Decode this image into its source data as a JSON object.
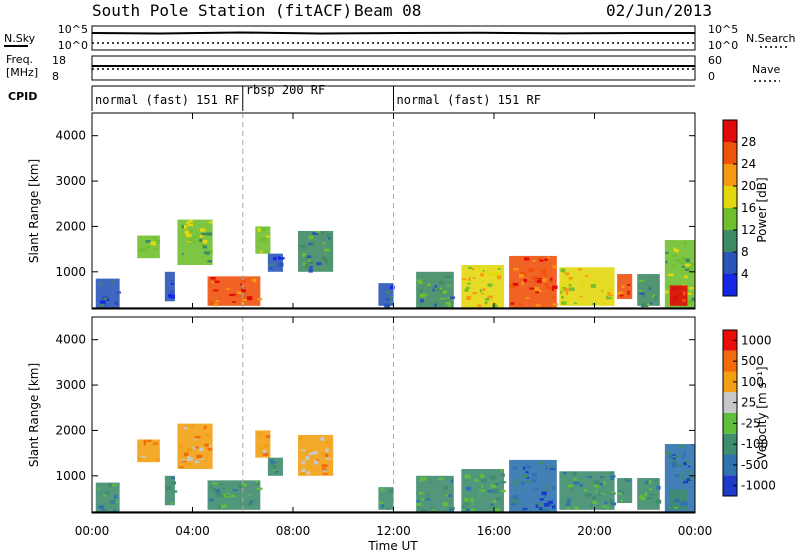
{
  "header": {
    "title": "South Pole Station (fitACF)",
    "beam": "Beam 08",
    "date": "02/Jun/2013"
  },
  "panels": {
    "nsky_label": "N.Sky",
    "nsearch_label": "N.Search",
    "nsky_ticks": [
      "10^5",
      "10^0"
    ],
    "nsearch_ticks": [
      "10^5",
      "10^0"
    ],
    "freq_label_1": "Freq.",
    "freq_label_2": "[MHz]",
    "freq_ticks": [
      "18",
      "8"
    ],
    "nave_label": "Nave",
    "nave_ticks": [
      "60",
      "0"
    ],
    "cpid_label": "CPID",
    "cpid_modes": [
      {
        "label": "normal (fast) 151 RF",
        "start": 0,
        "end": 6
      },
      {
        "label": "rbsp 200 RF",
        "start": 6,
        "end": 12
      },
      {
        "label": "normal (fast) 151 RF",
        "start": 12,
        "end": 24
      }
    ]
  },
  "chart_data": [
    {
      "type": "heatmap",
      "name": "power",
      "ylabel": "Slant Range [km]",
      "xlabel": "Time UT",
      "xlim": [
        0,
        24
      ],
      "ylim": [
        180,
        4500
      ],
      "xticks": [
        "00:00",
        "04:00",
        "08:00",
        "12:00",
        "16:00",
        "20:00",
        "00:00"
      ],
      "yticks": [
        1000,
        2000,
        3000,
        4000
      ],
      "colorbar": {
        "label": "Power [dB]",
        "ticks": [
          "4",
          "8",
          "12",
          "16",
          "20",
          "24",
          "28"
        ],
        "colors": [
          "#1428e6",
          "#2b55b8",
          "#3e8a64",
          "#6fbf2e",
          "#e3d80f",
          "#f59a12",
          "#f0520c",
          "#e00a0a"
        ]
      },
      "patches": [
        {
          "t0": 0.15,
          "t1": 1.1,
          "r0": 200,
          "r1": 850,
          "level": 1
        },
        {
          "t0": 1.8,
          "t1": 2.7,
          "r0": 1300,
          "r1": 1800,
          "level": 3
        },
        {
          "t0": 2.9,
          "t1": 3.3,
          "r0": 350,
          "r1": 1000,
          "level": 1
        },
        {
          "t0": 3.4,
          "t1": 4.8,
          "r0": 1150,
          "r1": 2150,
          "level": 3
        },
        {
          "t0": 4.6,
          "t1": 6.7,
          "r0": 250,
          "r1": 900,
          "level": 6
        },
        {
          "t0": 6.5,
          "t1": 7.1,
          "r0": 1400,
          "r1": 2000,
          "level": 3
        },
        {
          "t0": 7.0,
          "t1": 7.6,
          "r0": 1000,
          "r1": 1400,
          "level": 1
        },
        {
          "t0": 8.2,
          "t1": 9.6,
          "r0": 1000,
          "r1": 1900,
          "level": 2
        },
        {
          "t0": 11.4,
          "t1": 12.0,
          "r0": 250,
          "r1": 750,
          "level": 1
        },
        {
          "t0": 12.9,
          "t1": 14.4,
          "r0": 200,
          "r1": 1000,
          "level": 2
        },
        {
          "t0": 14.7,
          "t1": 16.4,
          "r0": 200,
          "r1": 1150,
          "level": 4
        },
        {
          "t0": 16.6,
          "t1": 18.5,
          "r0": 200,
          "r1": 1350,
          "level": 6
        },
        {
          "t0": 18.6,
          "t1": 20.8,
          "r0": 250,
          "r1": 1100,
          "level": 4
        },
        {
          "t0": 20.9,
          "t1": 21.5,
          "r0": 400,
          "r1": 950,
          "level": 6
        },
        {
          "t0": 21.7,
          "t1": 22.6,
          "r0": 250,
          "r1": 950,
          "level": 2
        },
        {
          "t0": 22.8,
          "t1": 24.0,
          "r0": 200,
          "r1": 1700,
          "level": 3
        },
        {
          "t0": 23.0,
          "t1": 23.7,
          "r0": 250,
          "r1": 700,
          "level": 7
        }
      ]
    },
    {
      "type": "heatmap",
      "name": "velocity",
      "ylabel": "Slant Range [km]",
      "xlabel": "Time UT",
      "xlim": [
        0,
        24
      ],
      "ylim": [
        180,
        4500
      ],
      "xticks": [
        "00:00",
        "04:00",
        "08:00",
        "12:00",
        "16:00",
        "20:00",
        "00:00"
      ],
      "yticks": [
        1000,
        2000,
        3000,
        4000
      ],
      "colorbar": {
        "label": "Velocity [m s⁻¹]",
        "ticks": [
          "1000",
          "500",
          "100",
          "25",
          "-25",
          "-100",
          "-500",
          "-1000"
        ],
        "colors": [
          "#1c3cc8",
          "#2f72b0",
          "#3f8c6e",
          "#5fbf3a",
          "#c8c8c8",
          "#f2a012",
          "#f26a0c",
          "#e80f0a"
        ]
      },
      "patches": [
        {
          "t0": 0.15,
          "t1": 1.1,
          "r0": 200,
          "r1": 850,
          "level": 2
        },
        {
          "t0": 1.8,
          "t1": 2.7,
          "r0": 1300,
          "r1": 1800,
          "level": 5
        },
        {
          "t0": 2.9,
          "t1": 3.3,
          "r0": 350,
          "r1": 1000,
          "level": 2
        },
        {
          "t0": 3.4,
          "t1": 4.8,
          "r0": 1150,
          "r1": 2150,
          "level": 5
        },
        {
          "t0": 4.6,
          "t1": 6.7,
          "r0": 250,
          "r1": 900,
          "level": 2
        },
        {
          "t0": 6.5,
          "t1": 7.1,
          "r0": 1400,
          "r1": 2000,
          "level": 5
        },
        {
          "t0": 7.0,
          "t1": 7.6,
          "r0": 1000,
          "r1": 1400,
          "level": 2
        },
        {
          "t0": 8.2,
          "t1": 9.6,
          "r0": 1000,
          "r1": 1900,
          "level": 5
        },
        {
          "t0": 11.4,
          "t1": 12.0,
          "r0": 250,
          "r1": 750,
          "level": 2
        },
        {
          "t0": 12.9,
          "t1": 14.4,
          "r0": 200,
          "r1": 1000,
          "level": 2
        },
        {
          "t0": 14.7,
          "t1": 16.4,
          "r0": 200,
          "r1": 1150,
          "level": 2
        },
        {
          "t0": 16.6,
          "t1": 18.5,
          "r0": 200,
          "r1": 1350,
          "level": 1
        },
        {
          "t0": 18.6,
          "t1": 20.8,
          "r0": 250,
          "r1": 1100,
          "level": 2
        },
        {
          "t0": 20.9,
          "t1": 21.5,
          "r0": 400,
          "r1": 950,
          "level": 2
        },
        {
          "t0": 21.7,
          "t1": 22.6,
          "r0": 250,
          "r1": 950,
          "level": 2
        },
        {
          "t0": 22.8,
          "t1": 24.0,
          "r0": 200,
          "r1": 1700,
          "level": 1
        },
        {
          "t0": 23.0,
          "t1": 23.7,
          "r0": 250,
          "r1": 700,
          "level": 2
        }
      ]
    }
  ]
}
